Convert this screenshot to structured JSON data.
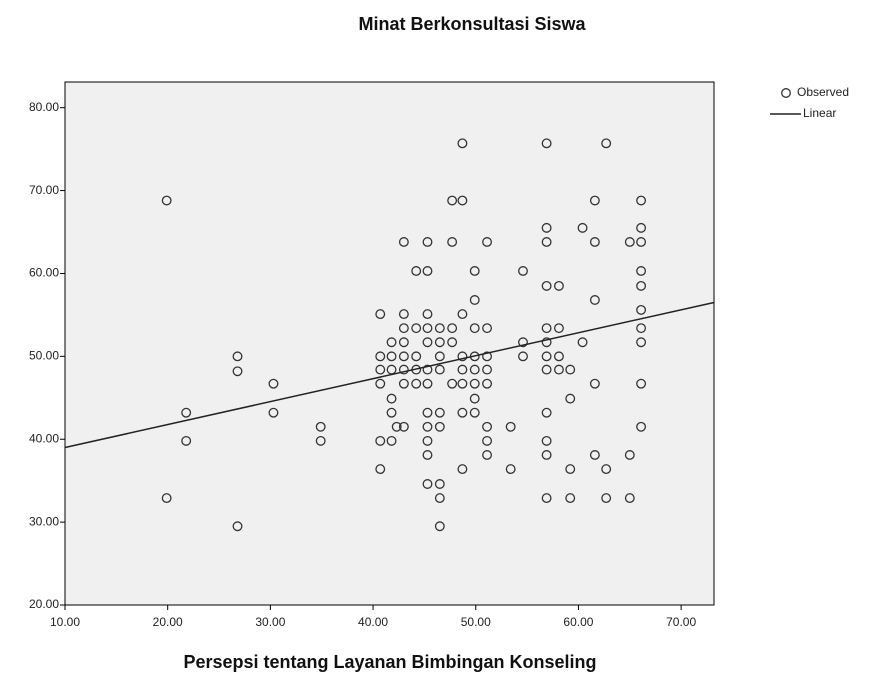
{
  "chart_data": {
    "type": "scatter",
    "title": "Minat Berkonsultasi Siswa",
    "x_label": "Persepsi tentang Layanan Bimbingan Konseling",
    "xlim": [
      10,
      73.2
    ],
    "ylim": [
      20,
      83.1
    ],
    "xticks": [
      {
        "value": 10,
        "label": "10.00"
      },
      {
        "value": 20,
        "label": "20.00"
      },
      {
        "value": 30,
        "label": "30.00"
      },
      {
        "value": 40,
        "label": "40.00"
      },
      {
        "value": 50,
        "label": "50.00"
      },
      {
        "value": 60,
        "label": "60.00"
      },
      {
        "value": 70,
        "label": "70.00"
      }
    ],
    "yticks": [
      {
        "value": 20,
        "label": "20.00"
      },
      {
        "value": 30,
        "label": "30.00"
      },
      {
        "value": 40,
        "label": "40.00"
      },
      {
        "value": 50,
        "label": "50.00"
      },
      {
        "value": 60,
        "label": "60.00"
      },
      {
        "value": 70,
        "label": "70.00"
      },
      {
        "value": 80,
        "label": "80.00"
      }
    ],
    "background": "#f0f0f0",
    "series": [
      {
        "name": "Observed",
        "type": "scatter",
        "color": "#333333",
        "x": [
          19.9,
          19.9,
          21.8,
          21.8,
          26.8,
          26.8,
          26.8,
          30.3,
          30.3,
          34.9,
          34.9,
          40.7,
          40.7,
          40.7,
          40.7,
          40.7,
          40.7,
          41.8,
          41.8,
          41.8,
          41.8,
          41.8,
          41.8,
          42.3,
          43.0,
          43.0,
          43.0,
          43.0,
          43.0,
          43.0,
          43.0,
          43.0,
          44.2,
          44.2,
          44.2,
          44.2,
          44.2,
          45.3,
          45.3,
          45.3,
          45.3,
          45.3,
          45.3,
          45.3,
          45.3,
          45.3,
          45.3,
          45.3,
          45.3,
          46.5,
          46.5,
          46.5,
          46.5,
          46.5,
          46.5,
          46.5,
          46.5,
          46.5,
          47.7,
          47.7,
          47.7,
          47.7,
          47.7,
          48.7,
          48.7,
          48.7,
          48.7,
          48.7,
          48.7,
          48.7,
          48.7,
          49.9,
          49.9,
          49.9,
          49.9,
          49.9,
          49.9,
          49.9,
          49.9,
          51.1,
          51.1,
          51.1,
          51.1,
          51.1,
          51.1,
          51.1,
          51.1,
          53.4,
          53.4,
          54.6,
          54.6,
          54.6,
          56.9,
          56.9,
          56.9,
          56.9,
          56.9,
          56.9,
          56.9,
          56.9,
          56.9,
          56.9,
          56.9,
          56.9,
          58.1,
          58.1,
          58.1,
          58.1,
          59.2,
          59.2,
          59.2,
          59.2,
          60.4,
          60.4,
          61.6,
          61.6,
          61.6,
          61.6,
          61.6,
          62.7,
          62.7,
          62.7,
          65.0,
          65.0,
          65.0,
          66.1,
          66.1,
          66.1,
          66.1,
          66.1,
          66.1,
          66.1,
          66.1,
          66.1,
          66.1
        ],
        "y": [
          68.8,
          32.9,
          43.2,
          39.8,
          50.0,
          48.2,
          29.5,
          46.7,
          43.2,
          41.5,
          39.8,
          55.1,
          50.0,
          48.4,
          46.7,
          39.8,
          36.4,
          51.7,
          50.0,
          48.4,
          44.9,
          43.2,
          39.8,
          41.5,
          63.8,
          55.1,
          53.4,
          51.7,
          50.0,
          48.4,
          46.7,
          41.5,
          60.3,
          53.4,
          50.0,
          48.4,
          46.7,
          63.8,
          60.3,
          55.1,
          53.4,
          51.7,
          48.4,
          46.7,
          43.2,
          41.5,
          39.8,
          38.1,
          34.6,
          53.4,
          51.7,
          50.0,
          48.4,
          43.2,
          41.5,
          34.6,
          32.9,
          29.5,
          68.8,
          63.8,
          53.4,
          51.7,
          46.7,
          75.7,
          68.8,
          55.1,
          50.0,
          48.4,
          46.7,
          43.2,
          36.4,
          60.3,
          56.8,
          53.4,
          50.0,
          48.4,
          46.7,
          44.9,
          43.2,
          63.8,
          53.4,
          50.0,
          48.4,
          46.7,
          41.5,
          39.8,
          38.1,
          41.5,
          36.4,
          60.3,
          51.7,
          50.0,
          75.7,
          65.5,
          63.8,
          58.5,
          53.4,
          51.7,
          50.0,
          48.4,
          43.2,
          39.8,
          38.1,
          32.9,
          58.5,
          53.4,
          50.0,
          48.4,
          48.4,
          44.9,
          36.4,
          32.9,
          65.5,
          51.7,
          68.8,
          63.8,
          56.8,
          46.7,
          38.1,
          75.7,
          36.4,
          32.9,
          63.8,
          38.1,
          32.9,
          68.8,
          65.5,
          63.8,
          60.3,
          58.5,
          55.6,
          53.4,
          51.7,
          46.7,
          41.5
        ]
      },
      {
        "name": "Linear",
        "type": "line",
        "color": "#222222",
        "x": [
          10,
          73.2
        ],
        "y": [
          39.0,
          56.5
        ]
      }
    ]
  }
}
